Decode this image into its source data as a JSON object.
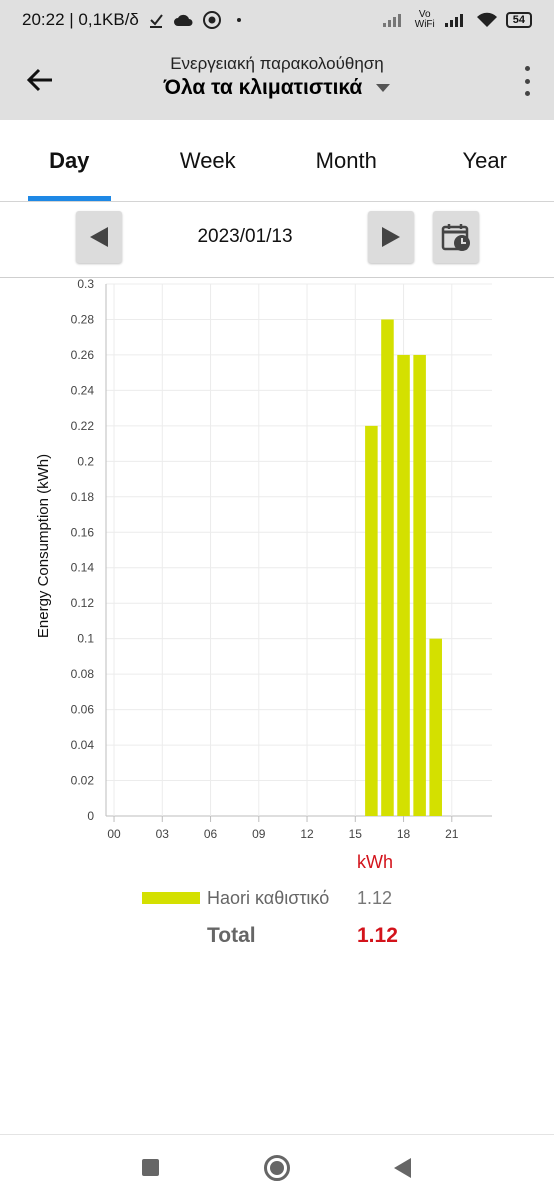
{
  "status_bar": {
    "time_and_speed": "20:22 | 0,1KB/δ",
    "vo_wifi": "Vo WiFi",
    "battery": "54"
  },
  "header": {
    "subtitle": "Ενεργειακή παρακολούθηση",
    "title": "Όλα τα κλιματιστικά"
  },
  "tabs": [
    {
      "label": "Day",
      "active": true
    },
    {
      "label": "Week",
      "active": false
    },
    {
      "label": "Month",
      "active": false
    },
    {
      "label": "Year",
      "active": false
    }
  ],
  "date_nav": {
    "date": "2023/01/13"
  },
  "chart_data": {
    "type": "bar",
    "ylabel": "Energy Consumption (kWh)",
    "xlabel": "",
    "unit_label": "kWh",
    "ylim": [
      0,
      0.3
    ],
    "yticks": [
      "0",
      "0.02",
      "0.04",
      "0.06",
      "0.08",
      "0.1",
      "0.12",
      "0.14",
      "0.16",
      "0.18",
      "0.2",
      "0.22",
      "0.24",
      "0.26",
      "0.28",
      "0.3"
    ],
    "xticks": [
      "00",
      "03",
      "06",
      "09",
      "12",
      "15",
      "18",
      "21"
    ],
    "xlim": [
      -0.5,
      23.5
    ],
    "grid": true,
    "bar_color": "#d4e000",
    "series": [
      {
        "name": "Haori καθιστικό",
        "hours": [
          16,
          17,
          18,
          19,
          20
        ],
        "values": [
          0.22,
          0.28,
          0.26,
          0.26,
          0.1
        ]
      }
    ]
  },
  "legend": {
    "items": [
      {
        "name": "Haori καθιστικό",
        "value": "1.12"
      }
    ],
    "total_label": "Total",
    "total_value": "1.12"
  }
}
